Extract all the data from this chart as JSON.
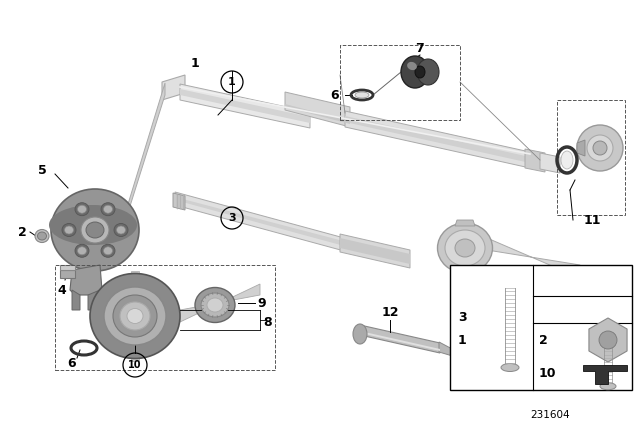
{
  "bg_color": "#ffffff",
  "diagram_number": "231604",
  "shaft_light": "#d8d8d8",
  "shaft_mid": "#c0c0c0",
  "shaft_dark": "#a8a8a8",
  "disc_dark": "#909090",
  "disc_mid": "#b0b0b0",
  "disc_light": "#cccccc",
  "bear_dark": "#888888",
  "bear_mid": "#aaaaaa",
  "bear_light": "#cccccc",
  "black": "#000000",
  "line_gray": "#666666",
  "label_fs": 9,
  "circle_fs": 8
}
